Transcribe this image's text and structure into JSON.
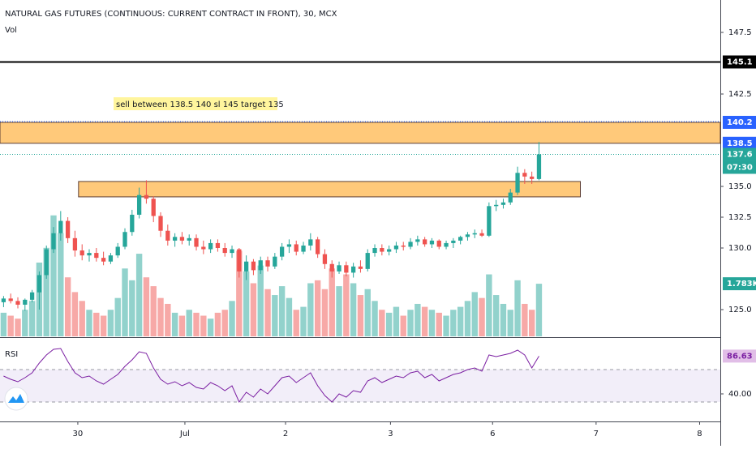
{
  "chart_data": {
    "type": "candlestick",
    "title": "NATURAL GAS FUTURES (CONTINUOUS: CURRENT CONTRACT IN FRONT), 30, MCX",
    "volume_title": "Vol",
    "rsi_title": "RSI",
    "annotation": "sell between 138.5 140 sl 145 target 135",
    "countdown": "07:30",
    "up_color": "#26a69a",
    "down_color": "#ef5350",
    "rsi_color": "#7b1fa2",
    "open": [
      125.6,
      125.9,
      125.7,
      125.4,
      125.8,
      126.4,
      127.8,
      129.9,
      131.2,
      132.2,
      130.8,
      129.8,
      129.4,
      129.6,
      129.2,
      128.9,
      129.4,
      130.1,
      131.3,
      132.7,
      134.3,
      134.0,
      132.6,
      131.4,
      130.6,
      130.9,
      130.6,
      130.8,
      130.1,
      129.9,
      130.4,
      130.0,
      129.6,
      129.9,
      128.1,
      128.9,
      128.2,
      129.0,
      128.5,
      129.3,
      130.1,
      130.3,
      129.7,
      130.2,
      130.7,
      129.5,
      128.7,
      128.1,
      128.6,
      128.0,
      128.5,
      128.3,
      129.6,
      130.0,
      129.7,
      129.9,
      130.2,
      130.1,
      130.5,
      130.7,
      130.3,
      130.6,
      130.1,
      130.4,
      130.6,
      130.9,
      131.1,
      131.2,
      131.0,
      133.4,
      133.5,
      133.7,
      134.5,
      136.1,
      135.8,
      135.6
    ],
    "high": [
      126.1,
      126.3,
      126.0,
      125.9,
      126.6,
      128.1,
      130.2,
      131.7,
      133.0,
      132.5,
      131.4,
      130.3,
      129.9,
      130.0,
      129.7,
      129.6,
      130.4,
      131.6,
      133.1,
      134.9,
      135.5,
      134.2,
      132.9,
      131.9,
      131.2,
      131.3,
      131.1,
      131.1,
      130.6,
      130.7,
      130.7,
      130.4,
      130.2,
      130.0,
      129.4,
      129.1,
      129.3,
      129.3,
      129.6,
      130.4,
      130.7,
      130.6,
      130.5,
      131.2,
      130.9,
      129.9,
      129.0,
      128.9,
      128.9,
      128.8,
      129.0,
      129.9,
      130.3,
      130.3,
      130.2,
      130.5,
      130.5,
      130.8,
      131.0,
      130.9,
      130.8,
      130.7,
      130.6,
      130.8,
      131.0,
      131.3,
      131.5,
      131.5,
      133.7,
      133.9,
      134.0,
      134.8,
      136.6,
      136.4,
      136.2,
      138.6
    ],
    "low": [
      125.2,
      125.5,
      125.1,
      124.9,
      125.6,
      125.0,
      127.5,
      129.6,
      130.6,
      130.4,
      129.3,
      129.0,
      128.9,
      128.9,
      128.6,
      128.7,
      129.2,
      129.9,
      131.0,
      132.4,
      133.6,
      132.1,
      130.9,
      130.2,
      130.1,
      130.3,
      130.2,
      129.8,
      129.5,
      129.6,
      129.7,
      129.3,
      129.2,
      127.6,
      127.4,
      127.8,
      127.9,
      128.1,
      128.3,
      129.0,
      129.6,
      129.4,
      129.5,
      129.8,
      129.2,
      128.3,
      127.6,
      127.9,
      127.7,
      127.6,
      128.0,
      128.1,
      129.3,
      129.4,
      129.4,
      129.6,
      129.8,
      129.9,
      130.2,
      130.1,
      130.0,
      129.9,
      129.9,
      130.0,
      130.3,
      130.6,
      130.8,
      130.9,
      130.9,
      133.0,
      133.2,
      133.5,
      134.3,
      135.2,
      135.2,
      135.5
    ],
    "close": [
      125.9,
      125.7,
      125.4,
      125.8,
      126.4,
      127.8,
      129.9,
      131.2,
      132.2,
      130.8,
      129.8,
      129.4,
      129.6,
      129.2,
      128.9,
      129.4,
      130.1,
      131.3,
      132.7,
      134.3,
      134.0,
      132.6,
      131.4,
      130.6,
      130.9,
      130.6,
      130.8,
      130.1,
      129.9,
      130.4,
      130.0,
      129.6,
      129.9,
      128.1,
      128.9,
      128.2,
      129.0,
      128.5,
      129.3,
      130.1,
      130.3,
      129.7,
      130.2,
      130.7,
      129.5,
      128.7,
      128.1,
      128.6,
      128.0,
      128.5,
      128.3,
      129.6,
      130.0,
      129.7,
      129.9,
      130.2,
      130.1,
      130.5,
      130.7,
      130.3,
      130.6,
      130.1,
      130.4,
      130.6,
      130.9,
      131.1,
      131.2,
      131.0,
      133.4,
      133.5,
      133.7,
      134.5,
      136.1,
      135.8,
      135.6,
      137.6
    ],
    "volume": [
      0.8,
      0.7,
      0.6,
      0.9,
      1.2,
      2.5,
      3.0,
      4.1,
      3.5,
      2.0,
      1.5,
      1.2,
      0.9,
      0.8,
      0.7,
      0.9,
      1.3,
      2.3,
      1.9,
      2.8,
      2.0,
      1.7,
      1.3,
      1.1,
      0.8,
      0.7,
      0.9,
      0.8,
      0.7,
      0.6,
      0.8,
      0.9,
      1.2,
      2.9,
      2.2,
      1.8,
      2.4,
      1.6,
      1.4,
      1.7,
      1.3,
      0.9,
      1.0,
      1.8,
      1.9,
      1.6,
      2.3,
      1.7,
      2.1,
      1.8,
      1.4,
      1.6,
      1.2,
      0.9,
      0.8,
      1.0,
      0.7,
      0.9,
      1.1,
      1.0,
      0.9,
      0.8,
      0.7,
      0.9,
      1.0,
      1.2,
      1.5,
      1.3,
      2.1,
      1.4,
      1.1,
      0.9,
      1.9,
      1.1,
      0.9,
      1.783
    ],
    "volume_value_labels": {
      "75": "1.783K"
    },
    "rsi": [
      62,
      58,
      55,
      60,
      66,
      78,
      88,
      95,
      96,
      80,
      66,
      60,
      62,
      56,
      52,
      58,
      64,
      74,
      82,
      92,
      90,
      72,
      58,
      52,
      55,
      50,
      54,
      48,
      46,
      54,
      50,
      44,
      50,
      30,
      42,
      36,
      46,
      40,
      50,
      60,
      62,
      54,
      60,
      66,
      50,
      38,
      30,
      40,
      36,
      44,
      42,
      56,
      60,
      54,
      58,
      62,
      60,
      66,
      68,
      60,
      64,
      56,
      60,
      64,
      66,
      70,
      72,
      68,
      88,
      86,
      88,
      90,
      94,
      88,
      72,
      86.63
    ],
    "xlim": [
      -0.5,
      100.4
    ],
    "xticks": [
      {
        "value": 10.4,
        "label": "30"
      },
      {
        "value": 25.4,
        "label": "Jul"
      },
      {
        "value": 39.5,
        "label": "2"
      },
      {
        "value": 54.2,
        "label": "3"
      },
      {
        "value": 68.5,
        "label": "6"
      },
      {
        "value": 83.0,
        "label": "7"
      },
      {
        "value": 97.5,
        "label": "8"
      }
    ],
    "ylim": [
      122.83,
      150.13
    ],
    "yticks": [
      147.5,
      142.5,
      {
        "value": 135,
        "label": "135.0"
      },
      132.5,
      {
        "value": 130,
        "label": "130.0"
      },
      {
        "value": 125,
        "label": "125.0"
      }
    ],
    "volume_ylim": [
      0,
      11.4
    ],
    "rsi_ylim": [
      6,
      108
    ],
    "rsi_yticks": [
      {
        "value": 40,
        "label": "40.00"
      }
    ],
    "rsi_band": [
      30,
      70
    ],
    "level_line": 145.1,
    "zone": [
      138.5,
      140.2
    ],
    "box": {
      "x": [
        10.5,
        80.8
      ],
      "y": [
        134.15,
        135.4
      ]
    }
  }
}
